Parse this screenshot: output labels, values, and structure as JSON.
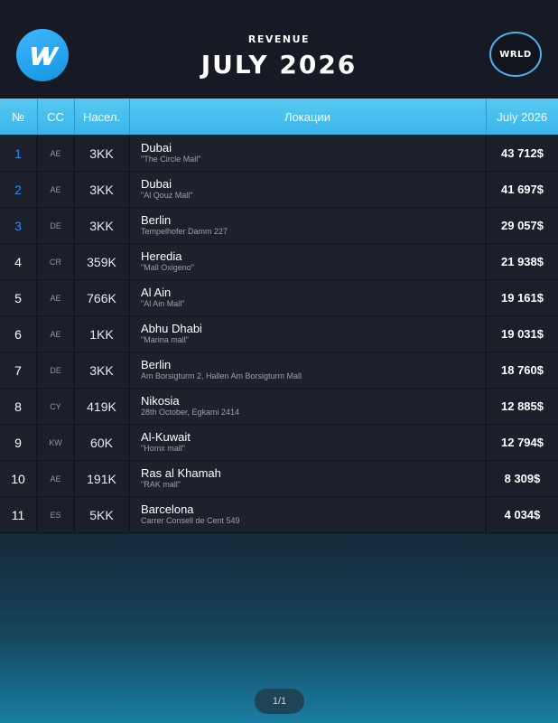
{
  "header": {
    "subtitle": "REVENUE",
    "title": "JULY 2026",
    "logo_right_text": "WRLD",
    "logo_left_icon": "w-logo-icon"
  },
  "table": {
    "columns": [
      "№",
      "CC",
      "Насел.",
      "Локации",
      "July 2026"
    ],
    "rows": [
      {
        "n": "1",
        "cc": "AE",
        "pop": "3KK",
        "city": "Dubai",
        "addr": "\"The Circle Mall\"",
        "rev": "43 712$"
      },
      {
        "n": "2",
        "cc": "AE",
        "pop": "3KK",
        "city": "Dubai",
        "addr": "\"Al Qouz Mall\"",
        "rev": "41 697$"
      },
      {
        "n": "3",
        "cc": "DE",
        "pop": "3KK",
        "city": "Berlin",
        "addr": "Tempelhofer Damm 227",
        "rev": "29 057$"
      },
      {
        "n": "4",
        "cc": "CR",
        "pop": "359K",
        "city": "Heredia",
        "addr": "\"Mall Oxigeno\"",
        "rev": "21 938$"
      },
      {
        "n": "5",
        "cc": "AE",
        "pop": "766K",
        "city": "Al Ain",
        "addr": "\"Al Ain Mall\"",
        "rev": "19 161$"
      },
      {
        "n": "6",
        "cc": "AE",
        "pop": "1KK",
        "city": "Abhu Dhabi",
        "addr": "\"Marina mall\"",
        "rev": "19 031$"
      },
      {
        "n": "7",
        "cc": "DE",
        "pop": "3KK",
        "city": "Berlin",
        "addr": "Am Borsigturm 2, Hallen Am Borsigturm Mall",
        "rev": "18 760$"
      },
      {
        "n": "8",
        "cc": "CY",
        "pop": "419K",
        "city": "Nikosia",
        "addr": "28th October, Egkami 2414",
        "rev": "12 885$"
      },
      {
        "n": "9",
        "cc": "KW",
        "pop": "60K",
        "city": "Al-Kuwait",
        "addr": "\"Homx mall\"",
        "rev": "12 794$"
      },
      {
        "n": "10",
        "cc": "AE",
        "pop": "191K",
        "city": "Ras al Khamah",
        "addr": "\"RAK mall\"",
        "rev": "8 309$"
      },
      {
        "n": "11",
        "cc": "ES",
        "pop": "5KK",
        "city": "Barcelona",
        "addr": "Carrer Consell de Cent 549",
        "rev": "4 034$"
      }
    ]
  },
  "pager": {
    "label": "1/1"
  },
  "colors": {
    "accent": "#3ab6ea",
    "top_rank": "#2f86f0",
    "row_bg": "#1d212c"
  }
}
